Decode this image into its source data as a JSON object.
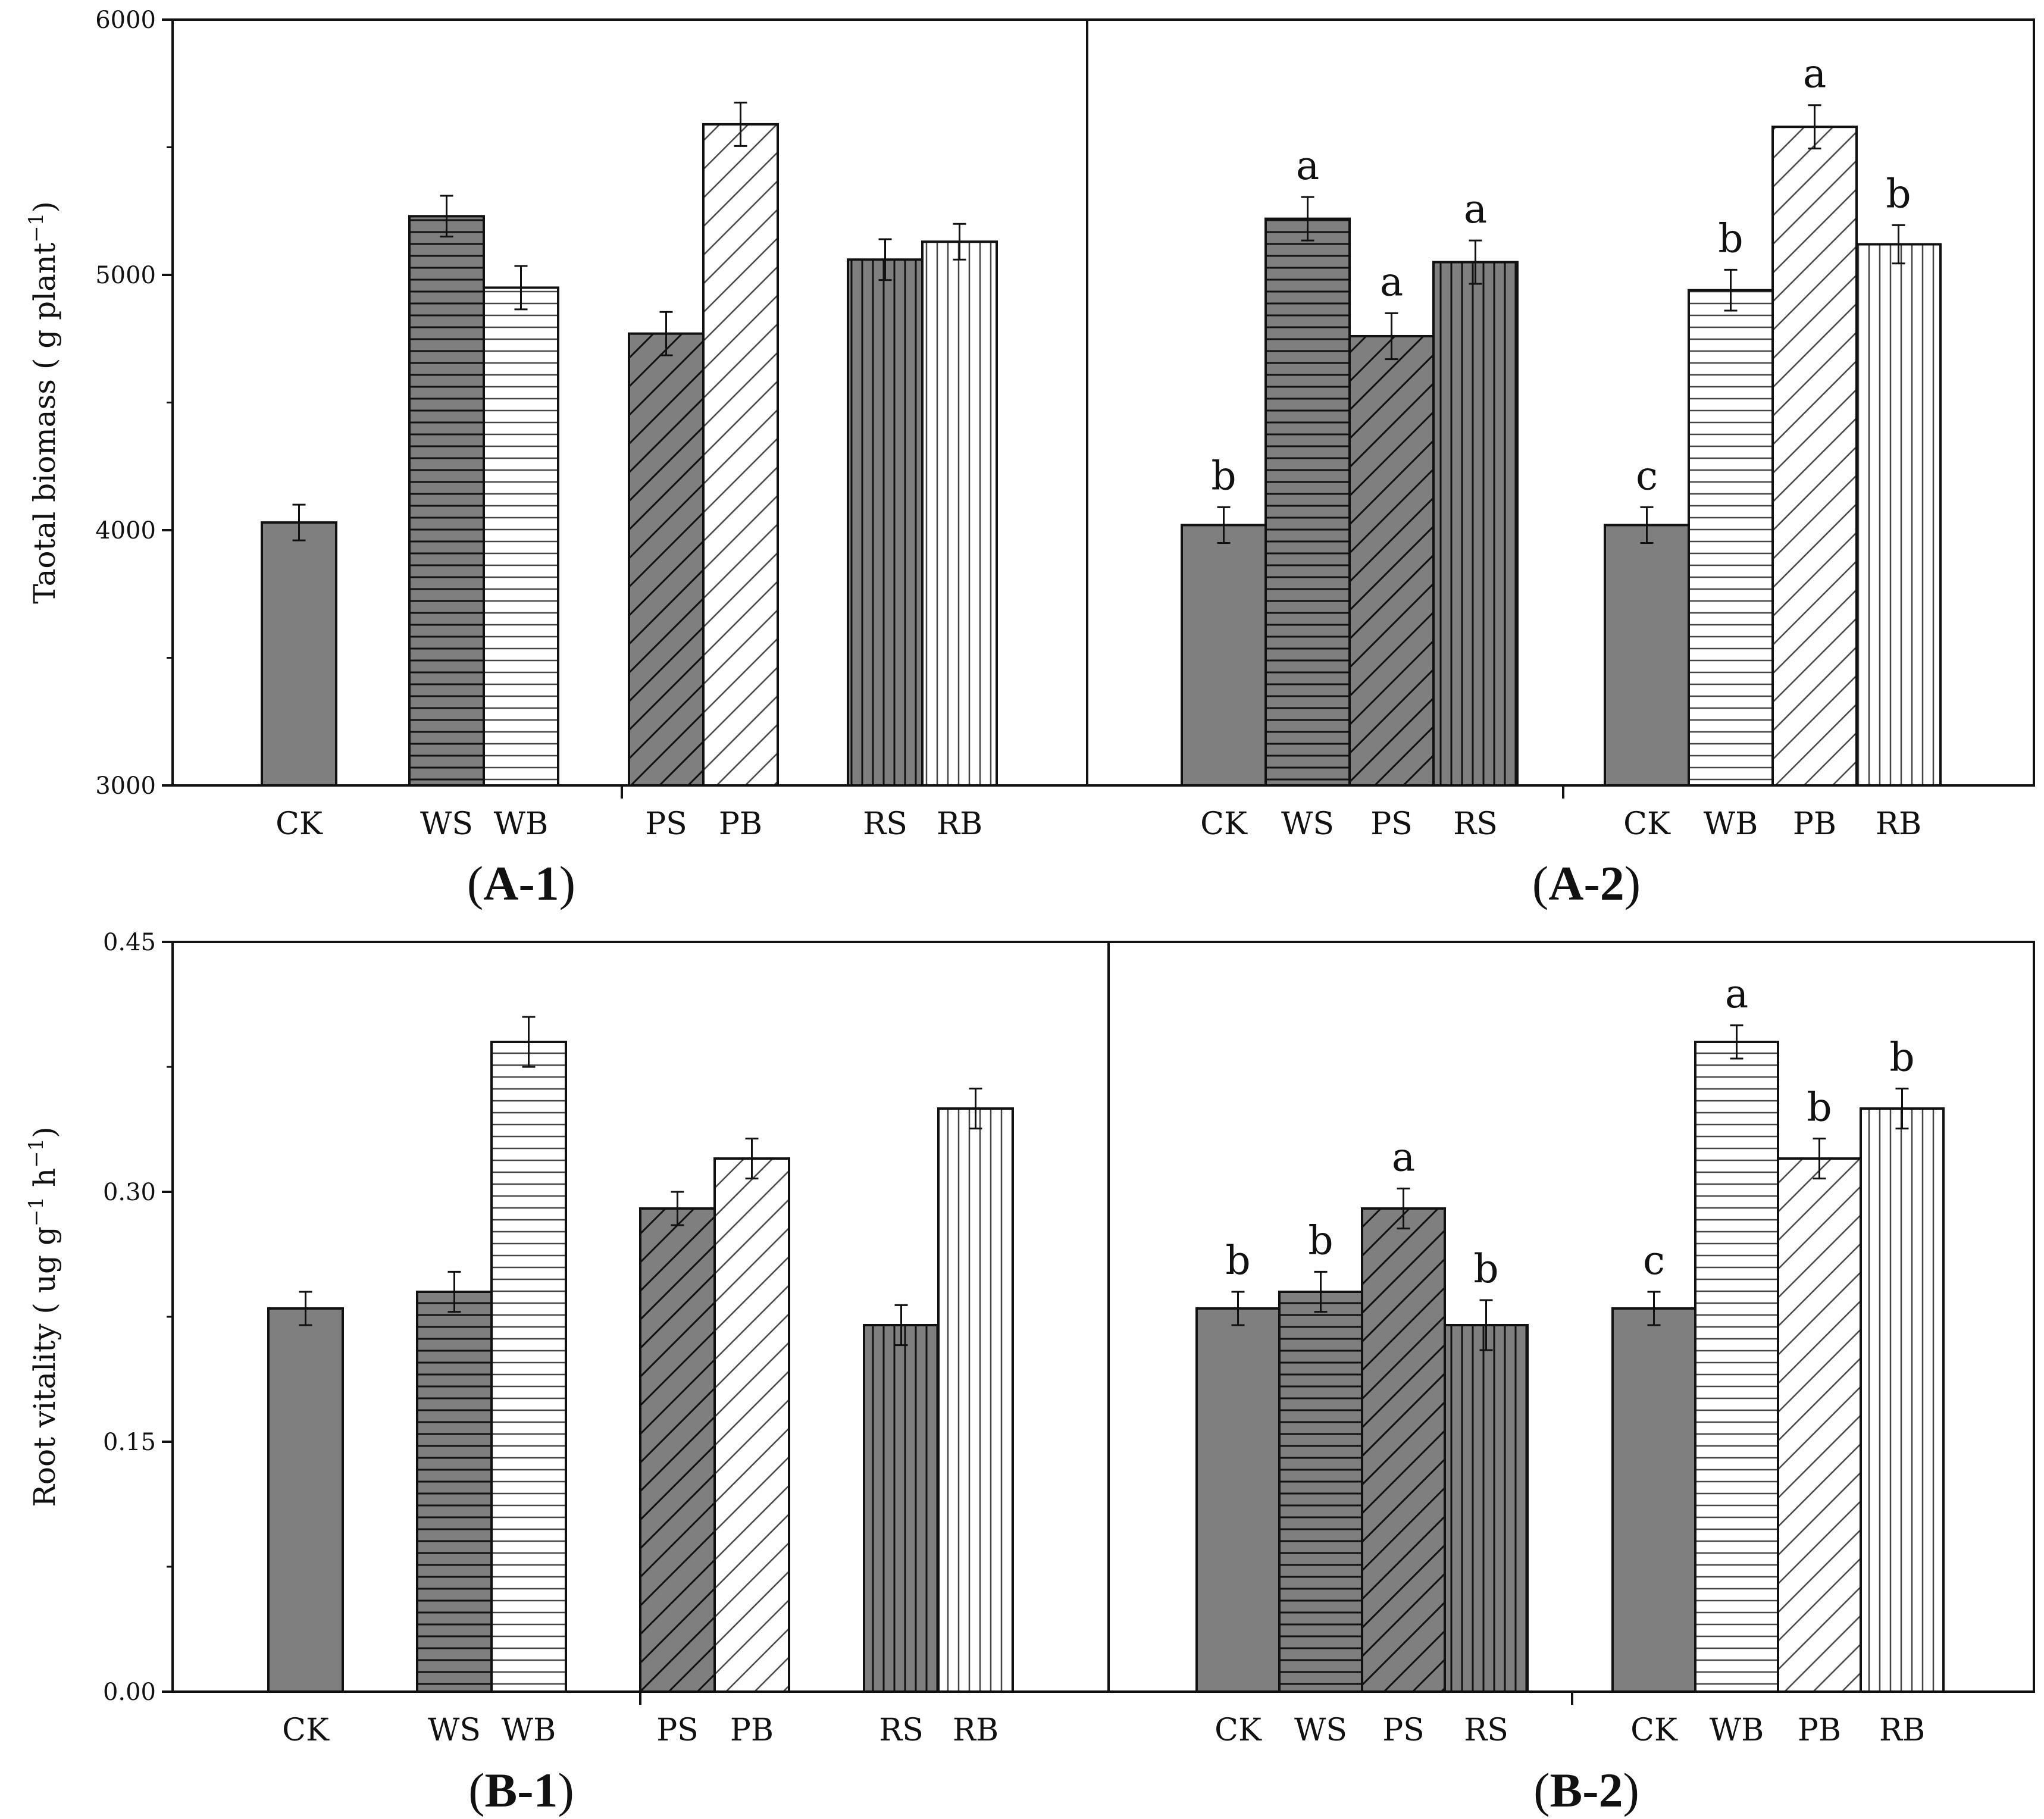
{
  "colors": {
    "dark": "#7f7f7f",
    "light": "#ffffff",
    "stroke": "#111111"
  },
  "chart_data": [
    {
      "id": "A-1",
      "caption": "A-1",
      "type": "bar",
      "ylabel": "Taotal biomass ( g plant",
      "ylabel_sup": "−1",
      "ylabel_end": ")",
      "ylim": [
        3000,
        6000
      ],
      "yticks": [
        "3000",
        "4000",
        "5000",
        "6000"
      ],
      "groups": [
        {
          "bars": [
            {
              "label": "CK",
              "value": 4030,
              "err": 70,
              "pattern": "solid",
              "fill": "dark"
            }
          ]
        },
        {
          "bars": [
            {
              "label": "WS",
              "value": 5230,
              "err": 80,
              "pattern": "hlines",
              "fill": "dark"
            },
            {
              "label": "WB",
              "value": 4950,
              "err": 85,
              "pattern": "hlines",
              "fill": "light"
            }
          ]
        },
        {
          "bars": [
            {
              "label": "PS",
              "value": 4770,
              "err": 85,
              "pattern": "diag",
              "fill": "dark"
            },
            {
              "label": "PB",
              "value": 5590,
              "err": 85,
              "pattern": "diag",
              "fill": "light"
            }
          ]
        },
        {
          "bars": [
            {
              "label": "RS",
              "value": 5060,
              "err": 80,
              "pattern": "vlines",
              "fill": "dark"
            },
            {
              "label": "RB",
              "value": 5130,
              "err": 70,
              "pattern": "vlines",
              "fill": "light"
            }
          ]
        }
      ]
    },
    {
      "id": "A-2",
      "caption": "A-2",
      "type": "bar",
      "ylim": [
        3000,
        6000
      ],
      "groups": [
        {
          "bars": [
            {
              "label": "CK",
              "value": 4020,
              "err": 70,
              "pattern": "solid",
              "fill": "dark",
              "sig": "b"
            },
            {
              "label": "WS",
              "value": 5220,
              "err": 85,
              "pattern": "hlines",
              "fill": "dark",
              "sig": "a"
            },
            {
              "label": "PS",
              "value": 4760,
              "err": 90,
              "pattern": "diag",
              "fill": "dark",
              "sig": "a"
            },
            {
              "label": "RS",
              "value": 5050,
              "err": 85,
              "pattern": "vlines",
              "fill": "dark",
              "sig": "a"
            }
          ]
        },
        {
          "bars": [
            {
              "label": "CK",
              "value": 4020,
              "err": 70,
              "pattern": "solid",
              "fill": "dark",
              "sig": "c"
            },
            {
              "label": "WB",
              "value": 4940,
              "err": 80,
              "pattern": "hlines",
              "fill": "light",
              "sig": "b"
            },
            {
              "label": "PB",
              "value": 5580,
              "err": 85,
              "pattern": "diag",
              "fill": "light",
              "sig": "a"
            },
            {
              "label": "RB",
              "value": 5120,
              "err": 75,
              "pattern": "vlines",
              "fill": "light",
              "sig": "b"
            }
          ]
        }
      ]
    },
    {
      "id": "B-1",
      "caption": "B-1",
      "type": "bar",
      "ylabel": "Root vitality ( ug g",
      "ylabel_sup": "−1",
      "ylabel_mid": " h",
      "ylabel_sup2": "−1",
      "ylabel_end": ")",
      "ylim": [
        0,
        0.45
      ],
      "yticks": [
        "0.00",
        "0.15",
        "0.30",
        "0.45"
      ],
      "groups": [
        {
          "bars": [
            {
              "label": "CK",
              "value": 0.23,
              "err": 0.01,
              "pattern": "solid",
              "fill": "dark"
            }
          ]
        },
        {
          "bars": [
            {
              "label": "WS",
              "value": 0.24,
              "err": 0.012,
              "pattern": "hlines",
              "fill": "dark"
            },
            {
              "label": "WB",
              "value": 0.39,
              "err": 0.015,
              "pattern": "hlines",
              "fill": "light"
            }
          ]
        },
        {
          "bars": [
            {
              "label": "PS",
              "value": 0.29,
              "err": 0.01,
              "pattern": "diag",
              "fill": "dark"
            },
            {
              "label": "PB",
              "value": 0.32,
              "err": 0.012,
              "pattern": "diag",
              "fill": "light"
            }
          ]
        },
        {
          "bars": [
            {
              "label": "RS",
              "value": 0.22,
              "err": 0.012,
              "pattern": "vlines",
              "fill": "dark"
            },
            {
              "label": "RB",
              "value": 0.35,
              "err": 0.012,
              "pattern": "vlines",
              "fill": "light"
            }
          ]
        }
      ]
    },
    {
      "id": "B-2",
      "caption": "B-2",
      "type": "bar",
      "ylim": [
        0,
        0.45
      ],
      "groups": [
        {
          "bars": [
            {
              "label": "CK",
              "value": 0.23,
              "err": 0.01,
              "pattern": "solid",
              "fill": "dark",
              "sig": "b"
            },
            {
              "label": "WS",
              "value": 0.24,
              "err": 0.012,
              "pattern": "hlines",
              "fill": "dark",
              "sig": "b"
            },
            {
              "label": "PS",
              "value": 0.29,
              "err": 0.012,
              "pattern": "diag",
              "fill": "dark",
              "sig": "a"
            },
            {
              "label": "RS",
              "value": 0.22,
              "err": 0.015,
              "pattern": "vlines",
              "fill": "dark",
              "sig": "b"
            }
          ]
        },
        {
          "bars": [
            {
              "label": "CK",
              "value": 0.23,
              "err": 0.01,
              "pattern": "solid",
              "fill": "dark",
              "sig": "c"
            },
            {
              "label": "WB",
              "value": 0.39,
              "err": 0.01,
              "pattern": "hlines",
              "fill": "light",
              "sig": "a"
            },
            {
              "label": "PB",
              "value": 0.32,
              "err": 0.012,
              "pattern": "diag",
              "fill": "light",
              "sig": "b"
            },
            {
              "label": "RB",
              "value": 0.35,
              "err": 0.012,
              "pattern": "vlines",
              "fill": "light",
              "sig": "b"
            }
          ]
        }
      ]
    }
  ]
}
